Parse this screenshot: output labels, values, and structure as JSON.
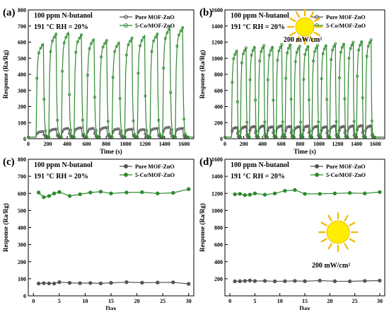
{
  "colors": {
    "pure": "#555555",
    "co": "#2f8a2f",
    "axis": "#000000",
    "sun": "#ffee00",
    "sun_edge": "#f2b800"
  },
  "legend": {
    "pure": "Pure MOF-ZnO",
    "co": "5-Co/MOF-ZnO"
  },
  "panels": [
    {
      "letter": "(a)",
      "cond1": "100 ppm N-butanol",
      "cond2": "191 °C RH = 20%",
      "light": "",
      "xlabel": "Time (s)",
      "ylabel": "Response (Ra/Rg)"
    },
    {
      "letter": "(b)",
      "cond1": "100 ppm N-butanol",
      "cond2": "191 °C RH = 20%",
      "light": "200 mW/cm²",
      "xlabel": "Time (s)",
      "ylabel": "Response (Ra/Rg)"
    },
    {
      "letter": "(c)",
      "cond1": "100 ppm N-butanol",
      "cond2": "191 °C RH = 20%",
      "light": "",
      "xlabel": "Day",
      "ylabel": "Response (Ra/Rg)"
    },
    {
      "letter": "(d)",
      "cond1": "100 ppm N-butanol",
      "cond2": "191 °C RH = 20%",
      "light": "200 mW/cm²",
      "xlabel": "Day",
      "ylabel": "Response (Ra/Rg)"
    }
  ],
  "chart_data": [
    {
      "type": "line",
      "xlabel": "Time (s)",
      "ylabel": "Response (Ra/Rg)",
      "xlim": [
        0,
        1700
      ],
      "ylim": [
        0,
        800
      ],
      "xticks": [
        0,
        200,
        400,
        600,
        800,
        1000,
        1200,
        1400,
        1600
      ],
      "yticks": [
        0,
        100,
        200,
        300,
        400,
        500,
        600,
        700,
        800
      ],
      "cycle_start": 80,
      "cycle_period": 130,
      "cycle_on": 75,
      "cycles": 12,
      "series": [
        {
          "name": "Pure MOF-ZnO",
          "peaks": [
            45,
            60,
            65,
            68,
            65,
            70,
            62,
            60,
            58,
            65,
            72,
            65
          ],
          "baseline": 10
        },
        {
          "name": "5-Co/MOF-ZnO",
          "peaks": [
            590,
            650,
            660,
            645,
            620,
            610,
            600,
            625,
            640,
            650,
            690,
            690
          ],
          "baseline": 10
        }
      ]
    },
    {
      "type": "line",
      "xlabel": "Time (s)",
      "ylabel": "Response (Ra/Rg)",
      "xlim": [
        0,
        1700
      ],
      "ylim": [
        0,
        1600
      ],
      "xticks": [
        0,
        200,
        400,
        600,
        800,
        1000,
        1200,
        1400,
        1600
      ],
      "yticks": [
        0,
        200,
        400,
        600,
        800,
        1000,
        1200,
        1400,
        1600
      ],
      "cycle_start": 70,
      "cycle_period": 95,
      "cycle_on": 60,
      "cycles": 16,
      "series": [
        {
          "name": "Pure MOF-ZnO",
          "peaks": [
            140,
            150,
            155,
            160,
            150,
            160,
            155,
            150,
            160,
            155,
            150,
            160,
            155,
            160,
            165,
            160
          ],
          "baseline": 20
        },
        {
          "name": "5-Co/MOF-ZnO",
          "peaks": [
            1100,
            1130,
            1150,
            1160,
            1150,
            1170,
            1180,
            1150,
            1160,
            1160,
            1170,
            1180,
            1190,
            1200,
            1220,
            1230
          ],
          "baseline": 20
        }
      ]
    },
    {
      "type": "line",
      "xlabel": "Day",
      "ylabel": "Response (Ra/Rg)",
      "xlim": [
        -1,
        31
      ],
      "ylim": [
        0,
        800
      ],
      "xticks": [
        0,
        5,
        10,
        15,
        20,
        25,
        30
      ],
      "yticks": [
        0,
        100,
        200,
        300,
        400,
        500,
        600,
        700,
        800
      ],
      "series": [
        {
          "name": "Pure MOF-ZnO",
          "x": [
            1,
            2,
            3,
            4,
            5,
            7,
            9,
            11,
            13,
            15,
            18,
            21,
            24,
            27,
            30
          ],
          "y": [
            72,
            74,
            73,
            72,
            80,
            76,
            74,
            75,
            73,
            76,
            80,
            77,
            78,
            79,
            70
          ]
        },
        {
          "name": "5-Co/MOF-ZnO",
          "x": [
            1,
            2,
            3,
            4,
            5,
            7,
            9,
            11,
            13,
            15,
            18,
            21,
            24,
            27,
            30
          ],
          "y": [
            605,
            578,
            585,
            600,
            608,
            585,
            595,
            605,
            610,
            600,
            605,
            607,
            600,
            603,
            625
          ]
        }
      ]
    },
    {
      "type": "line",
      "xlabel": "Day",
      "ylabel": "Response (Ra/Rg)",
      "xlim": [
        -1,
        31
      ],
      "ylim": [
        0,
        1600
      ],
      "xticks": [
        0,
        5,
        10,
        15,
        20,
        25,
        30
      ],
      "yticks": [
        200,
        400,
        600,
        800,
        1000,
        1200,
        1400,
        1600
      ],
      "series": [
        {
          "name": "Pure MOF-ZnO",
          "x": [
            1,
            2,
            3,
            4,
            5,
            7,
            9,
            11,
            13,
            15,
            18,
            21,
            24,
            27,
            30
          ],
          "y": [
            170,
            172,
            175,
            180,
            173,
            175,
            170,
            172,
            175,
            172,
            178,
            172,
            170,
            175,
            178
          ]
        },
        {
          "name": "5-Co/MOF-ZnO",
          "x": [
            1,
            2,
            3,
            4,
            5,
            7,
            9,
            11,
            13,
            15,
            18,
            21,
            24,
            27,
            30
          ],
          "y": [
            1190,
            1195,
            1180,
            1185,
            1200,
            1185,
            1200,
            1230,
            1240,
            1195,
            1195,
            1200,
            1205,
            1200,
            1215
          ]
        }
      ]
    }
  ]
}
